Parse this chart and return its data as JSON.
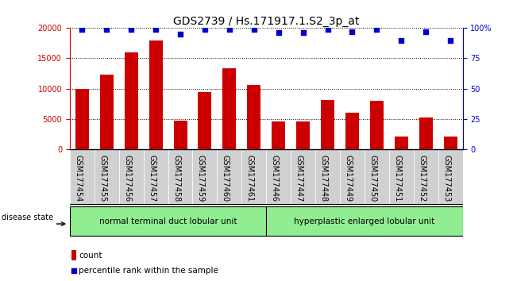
{
  "title": "GDS2739 / Hs.171917.1.S2_3p_at",
  "samples": [
    "GSM177454",
    "GSM177455",
    "GSM177456",
    "GSM177457",
    "GSM177458",
    "GSM177459",
    "GSM177460",
    "GSM177461",
    "GSM177446",
    "GSM177447",
    "GSM177448",
    "GSM177449",
    "GSM177450",
    "GSM177451",
    "GSM177452",
    "GSM177453"
  ],
  "counts": [
    10000,
    12300,
    16000,
    18000,
    4700,
    9400,
    13400,
    10600,
    4500,
    4600,
    8100,
    6000,
    8000,
    2000,
    5200,
    2000
  ],
  "percentiles": [
    99,
    99,
    99,
    99,
    95,
    99,
    99,
    99,
    96,
    96,
    99,
    97,
    99,
    90,
    97,
    90
  ],
  "bar_color": "#cc0000",
  "dot_color": "#0000cc",
  "ylim_left": [
    0,
    20000
  ],
  "ylim_right": [
    0,
    100
  ],
  "yticks_left": [
    0,
    5000,
    10000,
    15000,
    20000
  ],
  "yticks_right": [
    0,
    25,
    50,
    75,
    100
  ],
  "group1_label": "normal terminal duct lobular unit",
  "group2_label": "hyperplastic enlarged lobular unit",
  "group1_count": 8,
  "group2_count": 8,
  "disease_state_label": "disease state",
  "legend_count_label": "count",
  "legend_percentile_label": "percentile rank within the sample",
  "group1_color": "#90ee90",
  "group2_color": "#90ee90",
  "sample_bg_color": "#d0d0d0",
  "title_fontsize": 10,
  "tick_fontsize": 7,
  "label_fontsize": 8
}
